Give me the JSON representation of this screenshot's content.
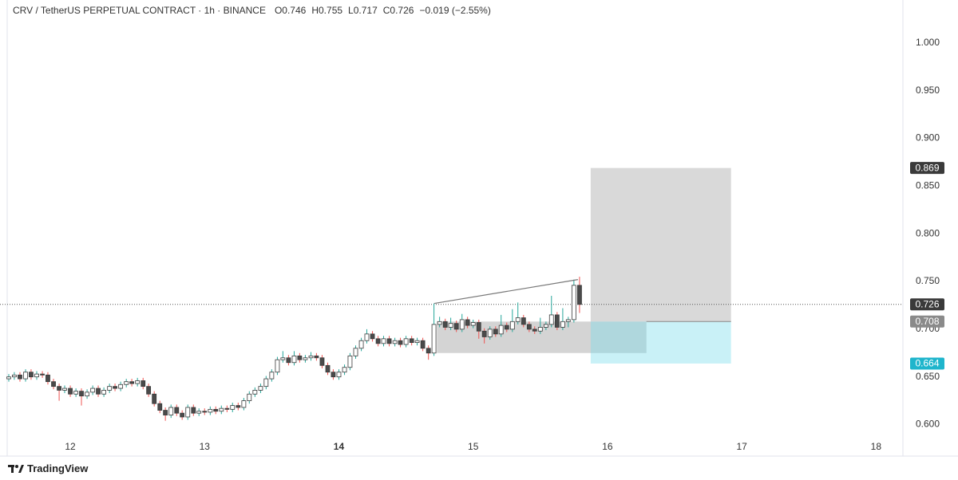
{
  "chart_data": {
    "type": "candlestick",
    "header": [
      "CRV / TetherUS PERPETUAL CONTRACT · 1h · BINANCE",
      "O0.746",
      "H0.755",
      "L0.717",
      "C0.726",
      "−0.019 (−2.55%)"
    ],
    "brand": "TradingView",
    "xlim": [
      11.536,
      18.2
    ],
    "xticks": [
      12,
      13,
      14,
      15,
      16,
      17,
      18
    ],
    "xtick_bold": [
      14
    ],
    "ylim": [
      0.567,
      1.02
    ],
    "yticks": [
      {
        "value": 0.6,
        "label": "0.600"
      },
      {
        "value": 0.65,
        "label": "0.650"
      },
      {
        "value": 0.7,
        "label": "0.700"
      },
      {
        "value": 0.75,
        "label": "0.750"
      },
      {
        "value": 0.8,
        "label": "0.800"
      },
      {
        "value": 0.85,
        "label": "0.850"
      },
      {
        "value": 0.9,
        "label": "0.900"
      },
      {
        "value": 0.95,
        "label": "0.950"
      },
      {
        "value": 1.0,
        "label": "1.000"
      }
    ],
    "up_color": "#ffffff",
    "down_color": "#4a4a4a",
    "border_color": "#3a3a3a",
    "wick_up_color": "#26a69a",
    "wick_down_color": "#ef5350",
    "x": [
      11.542,
      11.583,
      11.625,
      11.667,
      11.708,
      11.75,
      11.792,
      11.833,
      11.875,
      11.917,
      11.958,
      12,
      12.042,
      12.083,
      12.125,
      12.167,
      12.208,
      12.25,
      12.292,
      12.333,
      12.375,
      12.417,
      12.458,
      12.5,
      12.542,
      12.583,
      12.625,
      12.667,
      12.708,
      12.75,
      12.792,
      12.833,
      12.875,
      12.917,
      12.958,
      13,
      13.042,
      13.083,
      13.125,
      13.167,
      13.208,
      13.25,
      13.292,
      13.333,
      13.375,
      13.417,
      13.458,
      13.5,
      13.542,
      13.583,
      13.625,
      13.667,
      13.708,
      13.75,
      13.792,
      13.833,
      13.875,
      13.917,
      13.958,
      14,
      14.042,
      14.083,
      14.125,
      14.167,
      14.208,
      14.25,
      14.292,
      14.333,
      14.375,
      14.417,
      14.458,
      14.5,
      14.542,
      14.583,
      14.625,
      14.667,
      14.708,
      14.75,
      14.792,
      14.833,
      14.875,
      14.917,
      14.958,
      15,
      15.042,
      15.083,
      15.125,
      15.167,
      15.208,
      15.25,
      15.292,
      15.333,
      15.375,
      15.417,
      15.458,
      15.5,
      15.542,
      15.583,
      15.625,
      15.667,
      15.708,
      15.75,
      15.792
    ],
    "candles": [
      [
        0.648,
        0.653,
        0.645,
        0.65
      ],
      [
        0.65,
        0.655,
        0.647,
        0.652
      ],
      [
        0.652,
        0.655,
        0.645,
        0.648
      ],
      [
        0.648,
        0.658,
        0.645,
        0.655
      ],
      [
        0.655,
        0.658,
        0.647,
        0.65
      ],
      [
        0.65,
        0.656,
        0.647,
        0.653
      ],
      [
        0.653,
        0.656,
        0.649,
        0.652
      ],
      [
        0.652,
        0.655,
        0.642,
        0.645
      ],
      [
        0.645,
        0.648,
        0.637,
        0.64
      ],
      [
        0.64,
        0.643,
        0.625,
        0.636
      ],
      [
        0.636,
        0.641,
        0.633,
        0.638
      ],
      [
        0.638,
        0.641,
        0.629,
        0.632
      ],
      [
        0.632,
        0.638,
        0.629,
        0.635
      ],
      [
        0.635,
        0.638,
        0.62,
        0.63
      ],
      [
        0.63,
        0.637,
        0.627,
        0.634
      ],
      [
        0.634,
        0.641,
        0.631,
        0.638
      ],
      [
        0.638,
        0.641,
        0.629,
        0.632
      ],
      [
        0.632,
        0.639,
        0.629,
        0.636
      ],
      [
        0.636,
        0.643,
        0.633,
        0.64
      ],
      [
        0.64,
        0.643,
        0.635,
        0.638
      ],
      [
        0.638,
        0.645,
        0.635,
        0.642
      ],
      [
        0.642,
        0.648,
        0.639,
        0.645
      ],
      [
        0.645,
        0.648,
        0.64,
        0.643
      ],
      [
        0.643,
        0.649,
        0.64,
        0.646
      ],
      [
        0.646,
        0.649,
        0.637,
        0.64
      ],
      [
        0.64,
        0.643,
        0.629,
        0.632
      ],
      [
        0.632,
        0.635,
        0.619,
        0.622
      ],
      [
        0.622,
        0.625,
        0.612,
        0.615
      ],
      [
        0.615,
        0.618,
        0.604,
        0.61
      ],
      [
        0.61,
        0.621,
        0.607,
        0.618
      ],
      [
        0.618,
        0.621,
        0.609,
        0.612
      ],
      [
        0.612,
        0.615,
        0.605,
        0.608
      ],
      [
        0.608,
        0.621,
        0.605,
        0.618
      ],
      [
        0.618,
        0.621,
        0.609,
        0.612
      ],
      [
        0.612,
        0.617,
        0.609,
        0.614
      ],
      [
        0.614,
        0.617,
        0.61,
        0.613
      ],
      [
        0.613,
        0.619,
        0.61,
        0.616
      ],
      [
        0.616,
        0.619,
        0.611,
        0.614
      ],
      [
        0.614,
        0.62,
        0.611,
        0.617
      ],
      [
        0.617,
        0.62,
        0.613,
        0.616
      ],
      [
        0.616,
        0.623,
        0.613,
        0.62
      ],
      [
        0.62,
        0.623,
        0.615,
        0.618
      ],
      [
        0.618,
        0.628,
        0.615,
        0.625
      ],
      [
        0.625,
        0.635,
        0.622,
        0.632
      ],
      [
        0.632,
        0.639,
        0.629,
        0.636
      ],
      [
        0.636,
        0.643,
        0.633,
        0.64
      ],
      [
        0.64,
        0.651,
        0.637,
        0.648
      ],
      [
        0.648,
        0.658,
        0.645,
        0.655
      ],
      [
        0.655,
        0.671,
        0.652,
        0.668
      ],
      [
        0.668,
        0.677,
        0.665,
        0.67
      ],
      [
        0.67,
        0.673,
        0.662,
        0.665
      ],
      [
        0.665,
        0.677,
        0.662,
        0.672
      ],
      [
        0.672,
        0.675,
        0.665,
        0.668
      ],
      [
        0.668,
        0.673,
        0.665,
        0.67
      ],
      [
        0.67,
        0.676,
        0.667,
        0.672
      ],
      [
        0.672,
        0.675,
        0.667,
        0.67
      ],
      [
        0.67,
        0.673,
        0.659,
        0.662
      ],
      [
        0.662,
        0.665,
        0.652,
        0.655
      ],
      [
        0.655,
        0.658,
        0.647,
        0.65
      ],
      [
        0.65,
        0.658,
        0.647,
        0.655
      ],
      [
        0.655,
        0.663,
        0.652,
        0.66
      ],
      [
        0.66,
        0.675,
        0.657,
        0.672
      ],
      [
        0.672,
        0.683,
        0.669,
        0.68
      ],
      [
        0.68,
        0.691,
        0.677,
        0.688
      ],
      [
        0.688,
        0.7,
        0.685,
        0.695
      ],
      [
        0.695,
        0.698,
        0.687,
        0.69
      ],
      [
        0.69,
        0.693,
        0.682,
        0.685
      ],
      [
        0.685,
        0.693,
        0.682,
        0.69
      ],
      [
        0.69,
        0.693,
        0.682,
        0.685
      ],
      [
        0.685,
        0.691,
        0.682,
        0.688
      ],
      [
        0.688,
        0.691,
        0.681,
        0.684
      ],
      [
        0.684,
        0.693,
        0.681,
        0.69
      ],
      [
        0.69,
        0.693,
        0.683,
        0.686
      ],
      [
        0.686,
        0.691,
        0.683,
        0.688
      ],
      [
        0.688,
        0.691,
        0.677,
        0.68
      ],
      [
        0.68,
        0.683,
        0.668,
        0.675
      ],
      [
        0.675,
        0.727,
        0.672,
        0.705
      ],
      [
        0.705,
        0.713,
        0.702,
        0.708
      ],
      [
        0.708,
        0.711,
        0.699,
        0.702
      ],
      [
        0.702,
        0.712,
        0.699,
        0.706
      ],
      [
        0.706,
        0.709,
        0.697,
        0.7
      ],
      [
        0.7,
        0.716,
        0.697,
        0.71
      ],
      [
        0.71,
        0.713,
        0.701,
        0.704
      ],
      [
        0.704,
        0.71,
        0.701,
        0.707
      ],
      [
        0.707,
        0.71,
        0.69,
        0.698
      ],
      [
        0.698,
        0.701,
        0.685,
        0.692
      ],
      [
        0.692,
        0.703,
        0.689,
        0.7
      ],
      [
        0.7,
        0.703,
        0.692,
        0.695
      ],
      [
        0.695,
        0.715,
        0.692,
        0.704
      ],
      [
        0.704,
        0.707,
        0.697,
        0.7
      ],
      [
        0.7,
        0.721,
        0.697,
        0.708
      ],
      [
        0.708,
        0.728,
        0.705,
        0.712
      ],
      [
        0.712,
        0.715,
        0.702,
        0.705
      ],
      [
        0.705,
        0.708,
        0.697,
        0.7
      ],
      [
        0.7,
        0.703,
        0.695,
        0.698
      ],
      [
        0.698,
        0.712,
        0.695,
        0.702
      ],
      [
        0.702,
        0.708,
        0.699,
        0.705
      ],
      [
        0.705,
        0.735,
        0.702,
        0.715
      ],
      [
        0.715,
        0.718,
        0.699,
        0.702
      ],
      [
        0.702,
        0.722,
        0.699,
        0.708
      ],
      [
        0.708,
        0.713,
        0.702,
        0.71
      ],
      [
        0.71,
        0.752,
        0.707,
        0.746
      ],
      [
        0.746,
        0.755,
        0.717,
        0.726
      ]
    ],
    "range_box": {
      "x": [
        14.73,
        16.29
      ],
      "y": [
        0.675,
        0.708
      ],
      "color": "rgba(170,170,170,0.5)"
    },
    "trend_line": {
      "x": [
        14.71,
        15.78
      ],
      "y": [
        0.727,
        0.752
      ],
      "color": "#777777"
    },
    "position": {
      "x": [
        15.875,
        16.92
      ],
      "entry": 0.708,
      "target": 0.869,
      "stop": 0.664,
      "target_color": "rgba(185,185,185,0.55)",
      "stop_color": "rgba(120,220,235,0.4)",
      "entry_color": "#888888"
    },
    "price_labels": [
      {
        "value": 0.869,
        "label": "0.869",
        "color": "#3a3a3a"
      },
      {
        "value": 0.726,
        "label": "0.726",
        "color": "#3a3a3a",
        "line": "dotted"
      },
      {
        "value": 0.708,
        "label": "0.708",
        "color": "#8a8a8a"
      },
      {
        "value": 0.664,
        "label": "0.664",
        "color": "#1fb5cc"
      }
    ]
  }
}
